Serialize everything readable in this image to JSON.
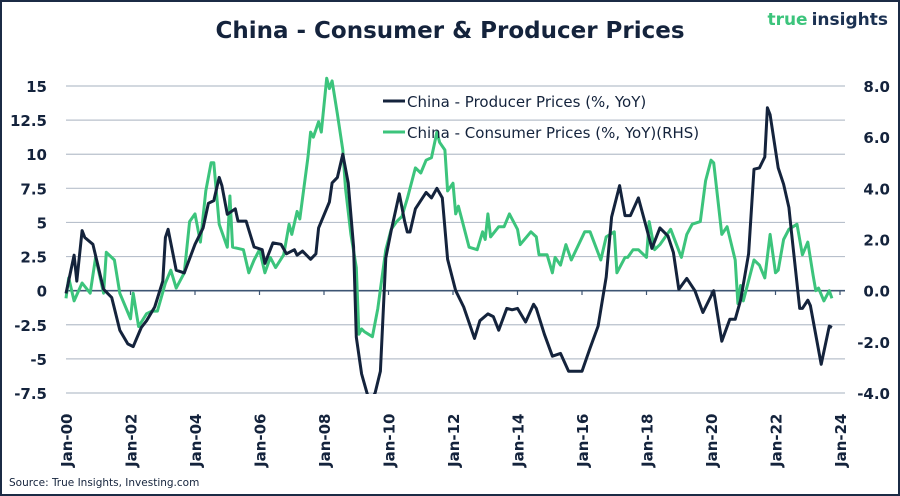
{
  "logo": {
    "part1": "true",
    "part2": "insights"
  },
  "source": "Source: True Insights, Investing.com",
  "colors": {
    "navy": "#14233c",
    "green": "#3cc47c",
    "grid": "#b8c0cc"
  },
  "chart_data": {
    "type": "line",
    "title": "China - Consumer & Producer Prices",
    "xlabel": "",
    "ylabel": "",
    "y2label": "",
    "grid": true,
    "legend_position": "top-center",
    "x_ticks": [
      "Jan-00",
      "Jan-02",
      "Jan-04",
      "Jan-06",
      "Jan-08",
      "Jan-10",
      "Jan-12",
      "Jan-14",
      "Jan-16",
      "Jan-18",
      "Jan-20",
      "Jan-22",
      "Jan-24"
    ],
    "x_range": [
      "2000-01",
      "2024-01"
    ],
    "y_left": {
      "range": [
        -7.5,
        15
      ],
      "ticks": [
        "-7.5",
        "-5",
        "-2.5",
        "0",
        "2.5",
        "5",
        "7.5",
        "10",
        "12.5",
        "15"
      ]
    },
    "y_right": {
      "range": [
        -4,
        8
      ],
      "ticks": [
        "-4.0",
        "-2.0",
        "0.0",
        "2.0",
        "4.0",
        "6.0",
        "8.0"
      ]
    },
    "series": [
      {
        "name": "China - Producer Prices (%, YoY)",
        "axis": "left",
        "color": "#14233c",
        "points": [
          [
            "2000-01",
            -0.2
          ],
          [
            "2000-04",
            2.6
          ],
          [
            "2000-05",
            0.7
          ],
          [
            "2000-07",
            4.4
          ],
          [
            "2000-08",
            3.9
          ],
          [
            "2000-11",
            3.4
          ],
          [
            "2001-03",
            0.1
          ],
          [
            "2001-06",
            -0.5
          ],
          [
            "2001-09",
            -2.9
          ],
          [
            "2001-12",
            -3.9
          ],
          [
            "2002-02",
            -4.1
          ],
          [
            "2002-05",
            -2.7
          ],
          [
            "2002-07",
            -2.2
          ],
          [
            "2002-10",
            -1.2
          ],
          [
            "2003-01",
            0.7
          ],
          [
            "2003-02",
            3.9
          ],
          [
            "2003-03",
            4.5
          ],
          [
            "2003-06",
            1.5
          ],
          [
            "2003-09",
            1.3
          ],
          [
            "2004-01",
            3.4
          ],
          [
            "2004-04",
            4.6
          ],
          [
            "2004-06",
            6.4
          ],
          [
            "2004-08",
            6.6
          ],
          [
            "2004-10",
            8.3
          ],
          [
            "2004-11",
            7.7
          ],
          [
            "2005-01",
            5.6
          ],
          [
            "2005-04",
            6.0
          ],
          [
            "2005-05",
            5.1
          ],
          [
            "2005-08",
            5.1
          ],
          [
            "2005-11",
            3.2
          ],
          [
            "2006-02",
            3.0
          ],
          [
            "2006-03",
            2.0
          ],
          [
            "2006-06",
            3.5
          ],
          [
            "2006-09",
            3.4
          ],
          [
            "2006-11",
            2.7
          ],
          [
            "2007-02",
            3.0
          ],
          [
            "2007-03",
            2.6
          ],
          [
            "2007-05",
            2.9
          ],
          [
            "2007-08",
            2.3
          ],
          [
            "2007-10",
            2.7
          ],
          [
            "2007-11",
            4.6
          ],
          [
            "2008-03",
            6.5
          ],
          [
            "2008-04",
            7.9
          ],
          [
            "2008-06",
            8.3
          ],
          [
            "2008-08",
            10.0
          ],
          [
            "2008-10",
            7.9
          ],
          [
            "2008-12",
            3.2
          ],
          [
            "2009-01",
            -3.4
          ],
          [
            "2009-03",
            -6.1
          ],
          [
            "2009-06",
            -8.2
          ],
          [
            "2009-08",
            -7.5
          ],
          [
            "2009-10",
            -5.9
          ],
          [
            "2009-12",
            2.4
          ],
          [
            "2010-02",
            4.4
          ],
          [
            "2010-05",
            7.1
          ],
          [
            "2010-07",
            5.1
          ],
          [
            "2010-08",
            4.3
          ],
          [
            "2010-09",
            4.3
          ],
          [
            "2010-11",
            6.0
          ],
          [
            "2011-03",
            7.2
          ],
          [
            "2011-05",
            6.8
          ],
          [
            "2011-07",
            7.5
          ],
          [
            "2011-09",
            6.8
          ],
          [
            "2011-11",
            2.3
          ],
          [
            "2012-02",
            0.0
          ],
          [
            "2012-05",
            -1.2
          ],
          [
            "2012-09",
            -3.5
          ],
          [
            "2012-11",
            -2.2
          ],
          [
            "2013-02",
            -1.7
          ],
          [
            "2013-04",
            -1.9
          ],
          [
            "2013-06",
            -2.9
          ],
          [
            "2013-09",
            -1.3
          ],
          [
            "2013-11",
            -1.4
          ],
          [
            "2014-01",
            -1.3
          ],
          [
            "2014-04",
            -2.3
          ],
          [
            "2014-07",
            -1.0
          ],
          [
            "2014-08",
            -1.3
          ],
          [
            "2014-11",
            -3.2
          ],
          [
            "2015-02",
            -4.8
          ],
          [
            "2015-05",
            -4.6
          ],
          [
            "2015-08",
            -5.9
          ],
          [
            "2016-01",
            -5.9
          ],
          [
            "2016-04",
            -4.2
          ],
          [
            "2016-07",
            -2.6
          ],
          [
            "2016-10",
            1.0
          ],
          [
            "2016-12",
            5.4
          ],
          [
            "2017-03",
            7.7
          ],
          [
            "2017-05",
            5.5
          ],
          [
            "2017-07",
            5.5
          ],
          [
            "2017-10",
            6.8
          ],
          [
            "2018-01",
            4.6
          ],
          [
            "2018-03",
            3.1
          ],
          [
            "2018-06",
            4.6
          ],
          [
            "2018-09",
            4.0
          ],
          [
            "2018-11",
            2.8
          ],
          [
            "2019-01",
            0.1
          ],
          [
            "2019-04",
            0.9
          ],
          [
            "2019-07",
            0.0
          ],
          [
            "2019-10",
            -1.6
          ],
          [
            "2020-02",
            0.0
          ],
          [
            "2020-05",
            -3.7
          ],
          [
            "2020-08",
            -2.1
          ],
          [
            "2020-10",
            -2.1
          ],
          [
            "2020-12",
            -0.7
          ],
          [
            "2021-03",
            2.7
          ],
          [
            "2021-05",
            8.9
          ],
          [
            "2021-07",
            9.0
          ],
          [
            "2021-09",
            9.8
          ],
          [
            "2021-10",
            13.4
          ],
          [
            "2021-11",
            12.9
          ],
          [
            "2022-02",
            9.0
          ],
          [
            "2022-04",
            7.8
          ],
          [
            "2022-06",
            6.1
          ],
          [
            "2022-07",
            4.2
          ],
          [
            "2022-10",
            -1.3
          ],
          [
            "2022-11",
            -1.3
          ],
          [
            "2023-01",
            -0.7
          ],
          [
            "2023-02",
            -1.1
          ],
          [
            "2023-06",
            -5.4
          ],
          [
            "2023-09",
            -2.6
          ],
          [
            "2023-10",
            -2.7
          ]
        ]
      },
      {
        "name": "China - Consumer Prices (%, YoY)(RHS)",
        "axis": "right",
        "color": "#3cc47c",
        "points": [
          [
            "2000-01",
            -0.3
          ],
          [
            "2000-02",
            0.5
          ],
          [
            "2000-04",
            -0.4
          ],
          [
            "2000-07",
            0.3
          ],
          [
            "2000-10",
            -0.1
          ],
          [
            "2000-12",
            1.3
          ],
          [
            "2001-03",
            -0.1
          ],
          [
            "2001-04",
            1.5
          ],
          [
            "2001-07",
            1.2
          ],
          [
            "2001-09",
            -0.1
          ],
          [
            "2002-01",
            -1.1
          ],
          [
            "2002-02",
            -0.1
          ],
          [
            "2002-04",
            -1.4
          ],
          [
            "2002-07",
            -0.9
          ],
          [
            "2002-09",
            -0.8
          ],
          [
            "2002-11",
            -0.8
          ],
          [
            "2003-02",
            0.3
          ],
          [
            "2003-04",
            0.8
          ],
          [
            "2003-06",
            0.1
          ],
          [
            "2003-09",
            0.7
          ],
          [
            "2003-11",
            2.7
          ],
          [
            "2004-01",
            3.0
          ],
          [
            "2004-03",
            1.9
          ],
          [
            "2004-05",
            3.9
          ],
          [
            "2004-07",
            5.0
          ],
          [
            "2004-08",
            5.0
          ],
          [
            "2004-10",
            2.6
          ],
          [
            "2005-01",
            1.7
          ],
          [
            "2005-02",
            3.7
          ],
          [
            "2005-03",
            1.7
          ],
          [
            "2005-07",
            1.6
          ],
          [
            "2005-09",
            0.7
          ],
          [
            "2005-11",
            1.2
          ],
          [
            "2006-01",
            1.6
          ],
          [
            "2006-03",
            0.7
          ],
          [
            "2006-05",
            1.3
          ],
          [
            "2006-07",
            0.9
          ],
          [
            "2006-10",
            1.4
          ],
          [
            "2006-12",
            2.6
          ],
          [
            "2007-01",
            2.2
          ],
          [
            "2007-03",
            3.1
          ],
          [
            "2007-04",
            2.8
          ],
          [
            "2007-07",
            5.2
          ],
          [
            "2007-08",
            6.2
          ],
          [
            "2007-09",
            6.0
          ],
          [
            "2007-11",
            6.6
          ],
          [
            "2007-12",
            6.2
          ],
          [
            "2008-02",
            8.3
          ],
          [
            "2008-03",
            7.9
          ],
          [
            "2008-04",
            8.2
          ],
          [
            "2008-06",
            6.9
          ],
          [
            "2008-08",
            5.5
          ],
          [
            "2008-09",
            4.0
          ],
          [
            "2008-11",
            2.2
          ],
          [
            "2009-01",
            0.9
          ],
          [
            "2009-02",
            -1.7
          ],
          [
            "2009-03",
            -1.5
          ],
          [
            "2009-04",
            -1.6
          ],
          [
            "2009-07",
            -1.8
          ],
          [
            "2009-09",
            -0.7
          ],
          [
            "2009-12",
            1.6
          ],
          [
            "2010-02",
            2.4
          ],
          [
            "2010-04",
            2.7
          ],
          [
            "2010-06",
            2.9
          ],
          [
            "2010-08",
            3.6
          ],
          [
            "2010-11",
            4.8
          ],
          [
            "2011-01",
            4.6
          ],
          [
            "2011-03",
            5.1
          ],
          [
            "2011-05",
            5.2
          ],
          [
            "2011-07",
            6.2
          ],
          [
            "2011-08",
            5.8
          ],
          [
            "2011-10",
            5.5
          ],
          [
            "2011-11",
            3.9
          ],
          [
            "2012-01",
            4.2
          ],
          [
            "2012-02",
            3.0
          ],
          [
            "2012-03",
            3.3
          ],
          [
            "2012-04",
            2.9
          ],
          [
            "2012-07",
            1.7
          ],
          [
            "2012-10",
            1.6
          ],
          [
            "2012-12",
            2.3
          ],
          [
            "2013-01",
            2.0
          ],
          [
            "2013-02",
            3.0
          ],
          [
            "2013-03",
            2.1
          ],
          [
            "2013-06",
            2.5
          ],
          [
            "2013-08",
            2.5
          ],
          [
            "2013-10",
            3.0
          ],
          [
            "2014-01",
            2.4
          ],
          [
            "2014-02",
            1.8
          ],
          [
            "2014-06",
            2.3
          ],
          [
            "2014-08",
            2.1
          ],
          [
            "2014-09",
            1.4
          ],
          [
            "2014-12",
            1.4
          ],
          [
            "2015-02",
            0.7
          ],
          [
            "2015-03",
            1.3
          ],
          [
            "2015-05",
            1.0
          ],
          [
            "2015-07",
            1.8
          ],
          [
            "2015-09",
            1.2
          ],
          [
            "2016-02",
            2.3
          ],
          [
            "2016-04",
            2.3
          ],
          [
            "2016-08",
            1.2
          ],
          [
            "2016-10",
            2.1
          ],
          [
            "2017-01",
            2.3
          ],
          [
            "2017-02",
            0.7
          ],
          [
            "2017-05",
            1.3
          ],
          [
            "2017-06",
            1.3
          ],
          [
            "2017-08",
            1.6
          ],
          [
            "2017-10",
            1.6
          ],
          [
            "2018-01",
            1.3
          ],
          [
            "2018-02",
            2.7
          ],
          [
            "2018-04",
            1.6
          ],
          [
            "2018-06",
            1.8
          ],
          [
            "2018-10",
            2.4
          ],
          [
            "2019-02",
            1.3
          ],
          [
            "2019-04",
            2.2
          ],
          [
            "2019-06",
            2.6
          ],
          [
            "2019-09",
            2.7
          ],
          [
            "2019-11",
            4.3
          ],
          [
            "2020-01",
            5.1
          ],
          [
            "2020-02",
            5.0
          ],
          [
            "2020-05",
            2.2
          ],
          [
            "2020-07",
            2.5
          ],
          [
            "2020-10",
            1.2
          ],
          [
            "2020-11",
            -0.5
          ],
          [
            "2020-12",
            0.2
          ],
          [
            "2021-01",
            -0.4
          ],
          [
            "2021-05",
            1.2
          ],
          [
            "2021-07",
            1.0
          ],
          [
            "2021-09",
            0.5
          ],
          [
            "2021-11",
            2.2
          ],
          [
            "2022-01",
            0.7
          ],
          [
            "2022-02",
            0.8
          ],
          [
            "2022-04",
            2.0
          ],
          [
            "2022-06",
            2.4
          ],
          [
            "2022-09",
            2.6
          ],
          [
            "2022-11",
            1.4
          ],
          [
            "2023-01",
            1.9
          ],
          [
            "2023-03",
            0.6
          ],
          [
            "2023-04",
            0.0
          ],
          [
            "2023-05",
            0.1
          ],
          [
            "2023-07",
            -0.4
          ],
          [
            "2023-09",
            0.0
          ],
          [
            "2023-10",
            -0.3
          ]
        ]
      }
    ]
  }
}
